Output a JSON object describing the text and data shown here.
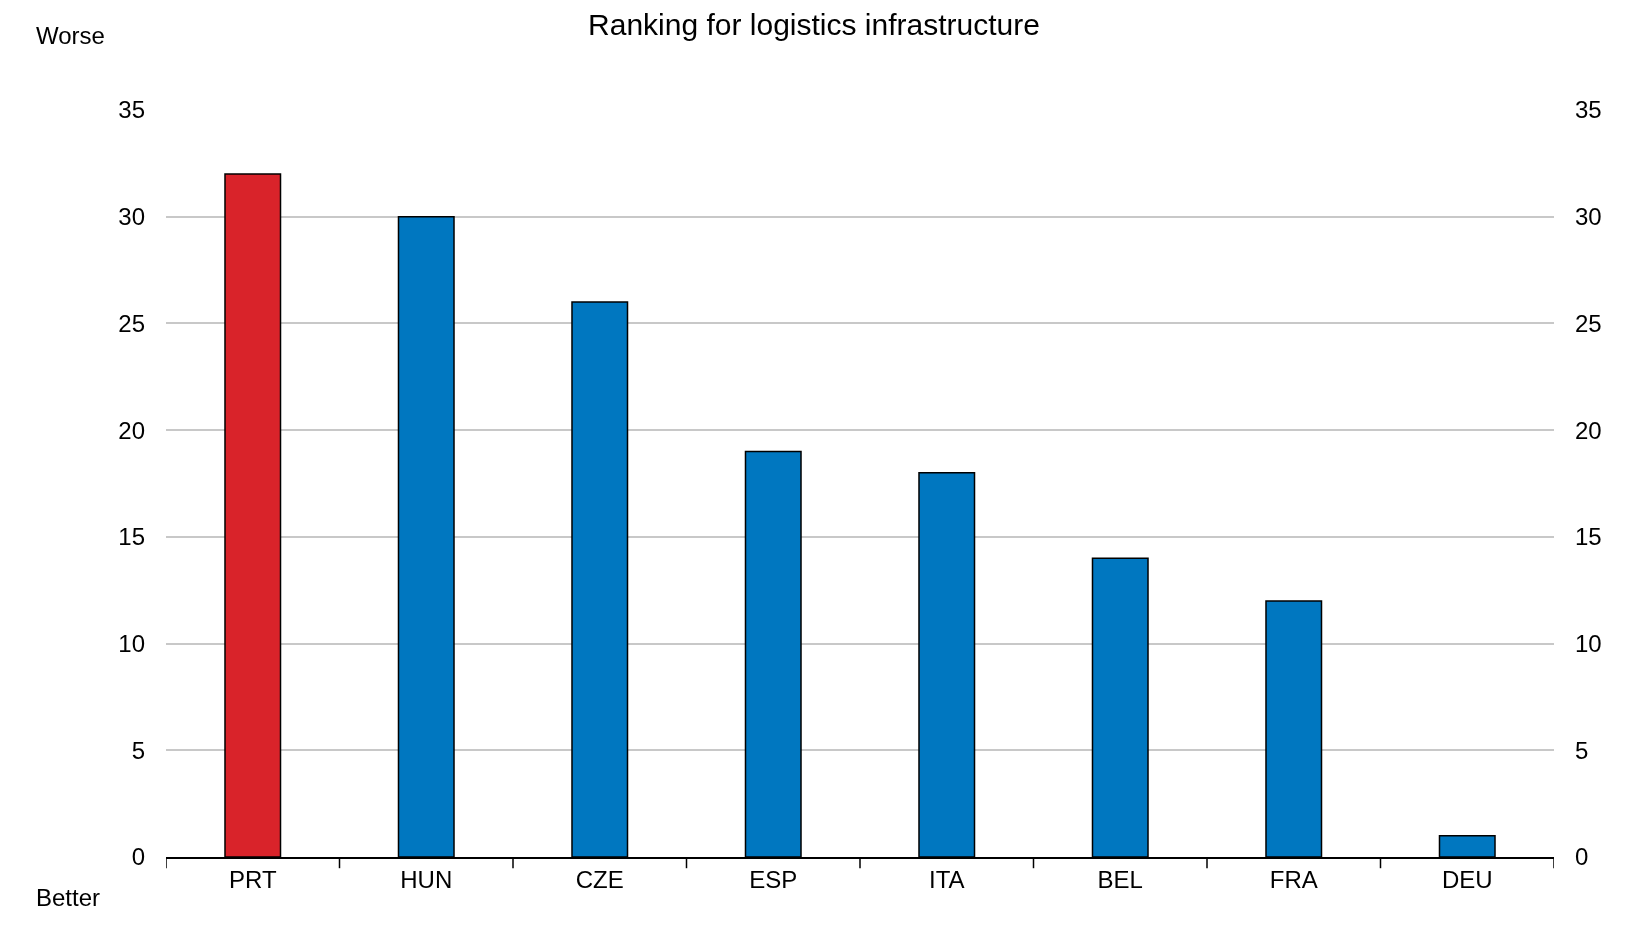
{
  "chart_data": {
    "type": "bar",
    "title": "Ranking for logistics infrastructure",
    "categories": [
      "PRT",
      "HUN",
      "CZE",
      "ESP",
      "ITA",
      "BEL",
      "FRA",
      "DEU"
    ],
    "values": [
      32,
      30,
      26,
      19,
      18,
      14,
      12,
      1
    ],
    "colors": [
      "#d9232a",
      "#0077c0",
      "#0077c0",
      "#0077c0",
      "#0077c0",
      "#0077c0",
      "#0077c0",
      "#0077c0"
    ],
    "ylim": [
      0,
      35
    ],
    "yticks": [
      0,
      5,
      10,
      15,
      20,
      25,
      30,
      35
    ],
    "y2lim": [
      0,
      35
    ],
    "y2ticks": [
      0,
      5,
      10,
      15,
      20,
      25,
      30,
      35
    ],
    "annotations": [
      "Worse",
      "Better"
    ],
    "grid": "y",
    "legend": false
  }
}
